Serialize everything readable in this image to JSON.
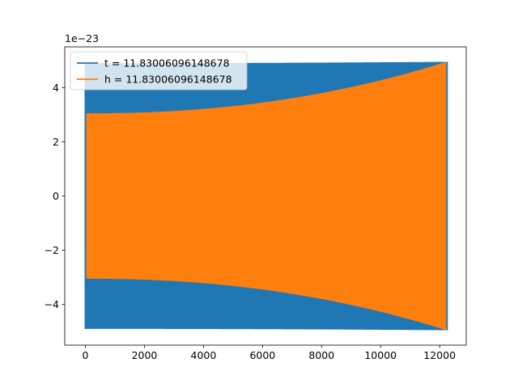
{
  "chart_data": {
    "type": "line",
    "title": "",
    "xlabel": "",
    "ylabel": "",
    "y_offset_text": "1e−23",
    "y_scale_exponent": -23,
    "xlim": [
      -700,
      12900
    ],
    "ylim": [
      -5.5,
      5.5
    ],
    "xticks": [
      0,
      2000,
      4000,
      6000,
      8000,
      10000,
      12000
    ],
    "xtick_labels": [
      "0",
      "2000",
      "4000",
      "6000",
      "8000",
      "10000",
      "12000"
    ],
    "yticks": [
      -4,
      -2,
      0,
      2,
      4
    ],
    "ytick_labels": [
      "−4",
      "−2",
      "0",
      "2",
      "4"
    ],
    "grid": false,
    "legend_position": "top-left",
    "series": [
      {
        "name": "t = 11.83006096148678",
        "color": "#1f77b4",
        "kind": "oscillation",
        "x_start": 0,
        "x_end": 12250,
        "amplitude_start": 4.9,
        "amplitude_end": 4.95,
        "note_visible": "spikes visible at x≈0 and x≈12250"
      },
      {
        "name": "h = 11.83006096148678",
        "color": "#ff7f0e",
        "kind": "oscillation",
        "x_start": 0,
        "x_end": 12250,
        "amplitude_start": 3.05,
        "amplitude_end": 4.95
      }
    ]
  }
}
